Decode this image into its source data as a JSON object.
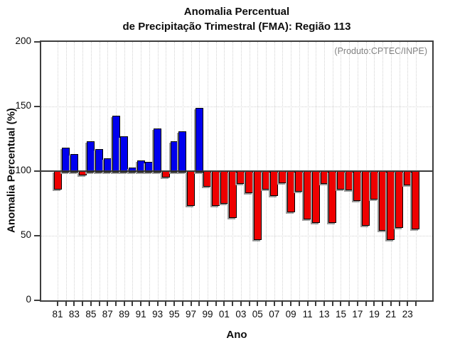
{
  "header": {
    "title_line1": "Anomalia Percentual",
    "title_line2": "de Precipitação Trimestral (FMA): Região 113"
  },
  "annotation": {
    "source": "(Produto:CPTEC/INPE)"
  },
  "chart_data": {
    "type": "bar",
    "title": "Anomalia Percentual de Precipitação Trimestral (FMA): Região 113",
    "xlabel": "Ano",
    "ylabel": "Anomalia Percentual (%)",
    "ylim": [
      0,
      200
    ],
    "yticks": [
      0,
      50,
      100,
      150,
      200
    ],
    "ytick_labels": [
      "0",
      "50",
      "100",
      "150",
      "200"
    ],
    "grid": "dotted",
    "grid_y_values": [
      50,
      150
    ],
    "reference_line": 100,
    "x": [
      1981,
      1982,
      1983,
      1984,
      1985,
      1986,
      1987,
      1988,
      1989,
      1990,
      1991,
      1992,
      1993,
      1994,
      1995,
      1996,
      1997,
      1998,
      1999,
      2000,
      2001,
      2002,
      2003,
      2004,
      2005,
      2006,
      2007,
      2008,
      2009,
      2010,
      2011,
      2012,
      2013,
      2014,
      2015,
      2016,
      2017,
      2018,
      2019,
      2020,
      2021,
      2022,
      2023,
      2024
    ],
    "values": [
      87,
      118,
      113,
      98,
      123,
      117,
      110,
      143,
      127,
      103,
      108,
      107,
      133,
      96,
      123,
      131,
      74,
      149,
      89,
      74,
      76,
      65,
      91,
      84,
      48,
      87,
      82,
      92,
      69,
      85,
      64,
      61,
      91,
      61,
      87,
      86,
      78,
      59,
      79,
      55,
      48,
      57,
      90,
      56
    ],
    "xtick_labels": [
      "81",
      "83",
      "85",
      "87",
      "89",
      "91",
      "93",
      "95",
      "97",
      "99",
      "01",
      "03",
      "05",
      "07",
      "09",
      "11",
      "13",
      "15",
      "17",
      "19",
      "21",
      "23"
    ],
    "xtick_label_step": 2,
    "colors": {
      "above_ref": "#0000EE",
      "below_ref": "#EE0000",
      "bar_outline": "#000000",
      "bar_shadow": "#9B9B9B",
      "reference": "#3A3A3A",
      "frame": "#3D3D3D",
      "grid": "#D2D2D2",
      "annotation_text": "#828282",
      "text": "#0D0D0D"
    }
  }
}
